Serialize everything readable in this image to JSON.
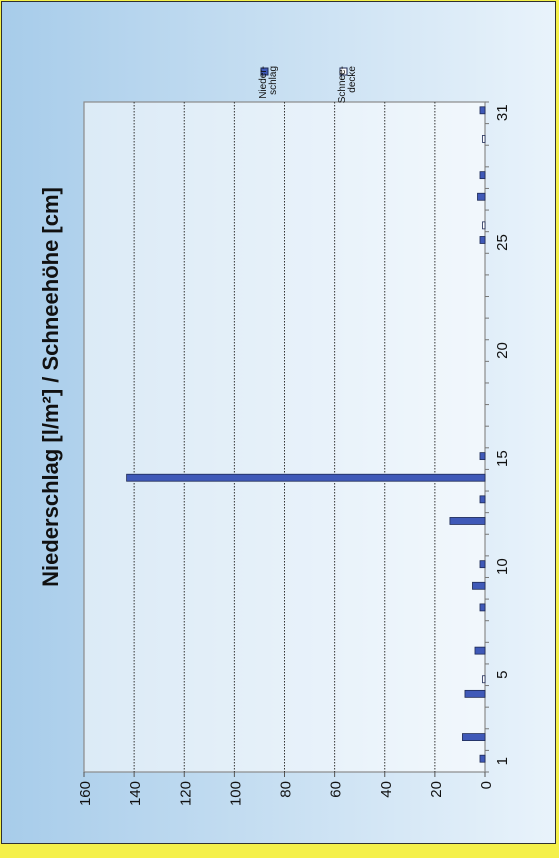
{
  "chart_data": {
    "type": "bar",
    "orientation": "rotated-90",
    "title": "Niederschlag [l/m²] / Schneehöhe [cm]",
    "xlabel": "",
    "ylabel": "",
    "categories": [
      1,
      2,
      3,
      4,
      5,
      6,
      7,
      8,
      9,
      10,
      11,
      12,
      13,
      14,
      15,
      16,
      17,
      18,
      19,
      20,
      21,
      22,
      23,
      24,
      25,
      26,
      27,
      28,
      29,
      30,
      31
    ],
    "x_ticks": [
      1,
      5,
      10,
      15,
      20,
      25,
      31
    ],
    "ylim": [
      0,
      160
    ],
    "y_ticks": [
      0,
      20,
      40,
      60,
      80,
      100,
      120,
      140,
      160
    ],
    "grid": "horizontal-value-gridlines",
    "legend_position": "top-right",
    "series": [
      {
        "name": "Nieder-\nschlag",
        "color": "#3f59b8",
        "values": [
          2,
          9,
          0,
          8,
          0,
          4,
          0,
          2,
          5,
          2,
          0,
          14,
          2,
          143,
          2,
          0,
          0,
          0,
          0,
          0,
          0,
          0,
          0,
          0,
          2,
          0,
          3,
          2,
          0,
          0,
          2
        ]
      },
      {
        "name": "Schnee-\ndecke",
        "color": "#ffffff",
        "values": [
          0,
          0,
          0,
          0,
          1,
          0,
          0,
          0,
          0,
          0,
          0,
          0,
          0,
          0,
          0,
          0,
          0,
          0,
          0,
          0,
          0,
          0,
          0,
          0,
          0,
          1,
          0,
          0,
          0,
          1,
          0
        ]
      }
    ]
  }
}
